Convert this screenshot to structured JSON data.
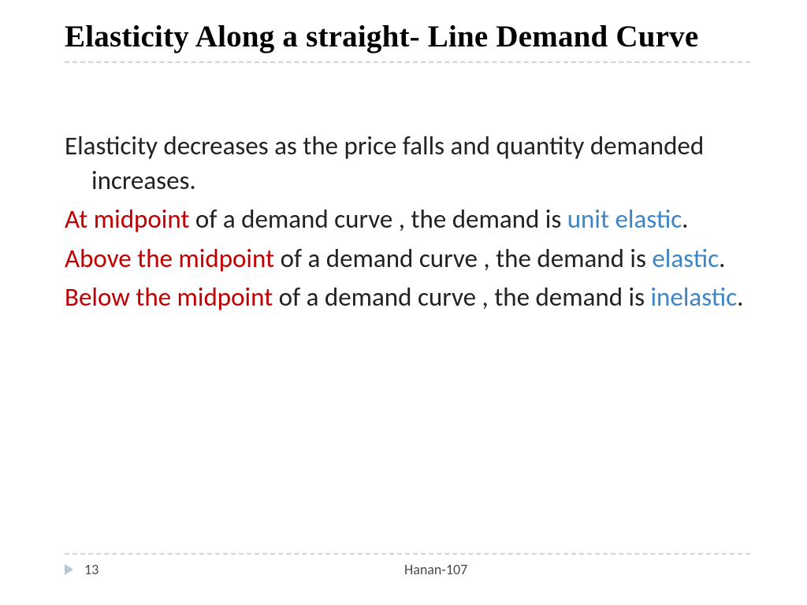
{
  "colors": {
    "background": "#ffffff",
    "title_text": "#000000",
    "body_text": "#222222",
    "accent_red": "#c00000",
    "accent_blue": "#3d85c6",
    "rule_dash": "#cfd3d6",
    "footer_arrow": "#b6c8d6",
    "footer_text": "#4a4a4a"
  },
  "typography": {
    "title_family": "Rockwell",
    "title_size_pt": 29,
    "title_weight": 800,
    "body_family": "Gill Sans",
    "body_size_pt": 25,
    "footer_size_pt": 13
  },
  "title": "Elasticity Along a straight-  Line Demand Curve",
  "paragraphs": {
    "p1": {
      "full": "Elasticity decreases as the price falls and quantity demanded  increases."
    },
    "p2": {
      "red": "At midpoint",
      "mid": " of a demand curve , the demand is ",
      "blue": "unit elastic",
      "tail": "."
    },
    "p3": {
      "red": "Above the midpoint",
      "mid": " of a demand curve , the demand is ",
      "blue": "elastic",
      "tail": "."
    },
    "p4": {
      "red": "Below the midpoint",
      "mid": " of a demand curve , the demand is ",
      "blue": "inelastic",
      "tail": "."
    }
  },
  "footer": {
    "page_number": "13",
    "author": "Hanan-107"
  }
}
